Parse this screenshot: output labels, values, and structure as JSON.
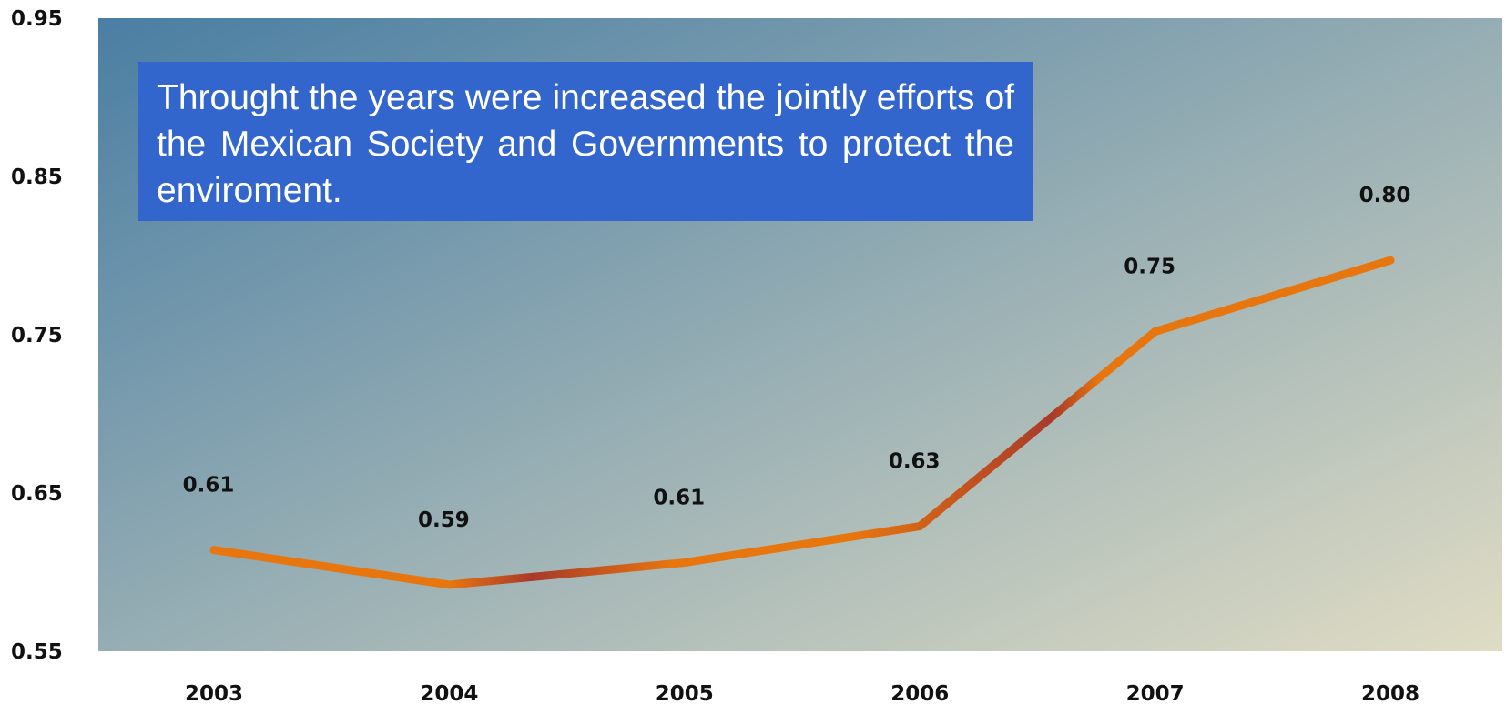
{
  "chart_data": {
    "type": "line",
    "categories": [
      "2003",
      "2004",
      "2005",
      "2006",
      "2007",
      "2008"
    ],
    "series": [
      {
        "values": [
          0.61,
          0.59,
          0.61,
          0.63,
          0.75,
          0.8
        ],
        "labels": [
          "0.61",
          "0.59",
          "0.61",
          "0.63",
          "0.75",
          "0.80"
        ]
      }
    ],
    "plotted_values": [
      0.614,
      0.592,
      0.606,
      0.629,
      0.752,
      0.797
    ],
    "ylim": [
      0.55,
      0.95
    ],
    "yticks": [
      "0.95",
      "0.85",
      "0.75",
      "0.65",
      "0.55"
    ],
    "ytick_values": [
      0.95,
      0.85,
      0.75,
      0.65,
      0.55
    ],
    "annotation": "Throught the years were increased the jointly efforts of the Mexican Society and Governments to protect the enviroment.",
    "grid": false,
    "legend": "none",
    "colors": {
      "line": "#e8760f",
      "line_dark": "#a83a2a",
      "bg_top_left": "#4a7ea3",
      "bg_bottom_right": "#e0dcc4",
      "annotation_bg": "#3366cc",
      "annotation_text": "#ffffff"
    }
  }
}
